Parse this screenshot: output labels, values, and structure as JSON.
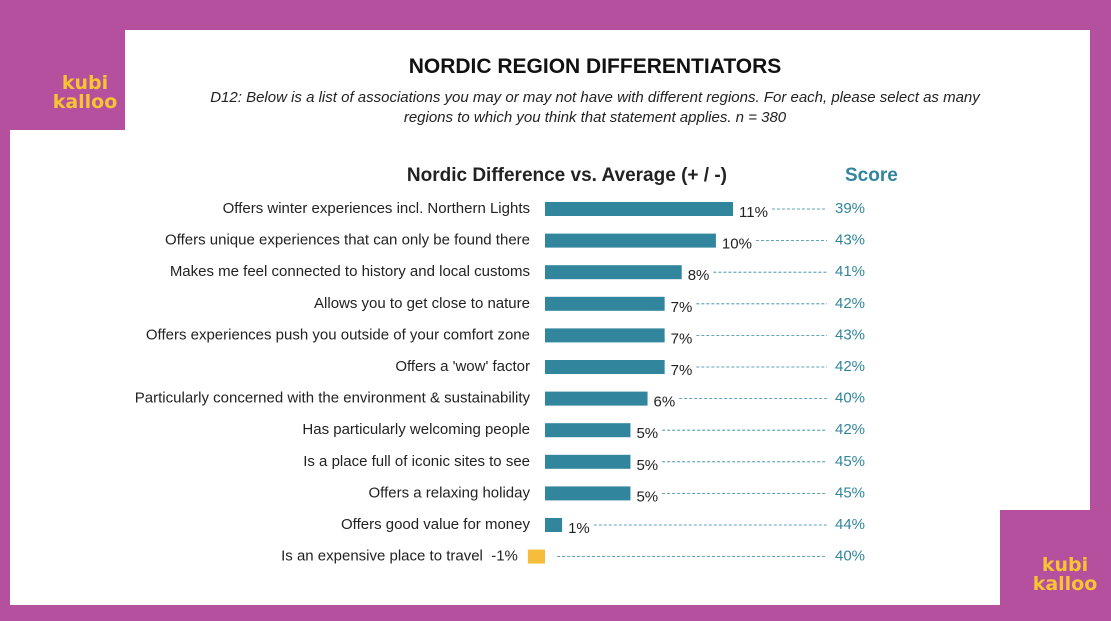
{
  "chart_data": {
    "type": "bar",
    "orientation": "horizontal",
    "title": "NORDIC REGION DIFFERENTIATORS",
    "subtitle": "D12: Below is a list of associations you may or may not have with different regions. For each, please select as many regions to which you think that statement applies. n = 380",
    "brand": [
      "kubi",
      "kalloo"
    ],
    "categories": [
      "Offers winter experiences incl. Northern Lights",
      "Offers unique experiences that can only be found there",
      "Makes me feel connected to history and local customs",
      "Allows you to get close to nature",
      "Offers experiences push you outside of your comfort zone",
      "Offers a 'wow' factor",
      "Particularly concerned with the environment & sustainability",
      "Has particularly welcoming people",
      "Is a place full of iconic sites to see",
      "Offers a relaxing holiday",
      "Offers good value for money",
      "Is an expensive place to travel"
    ],
    "series": [
      {
        "name": "Nordic Difference vs. Average (+ / -)",
        "color": "#31859c",
        "negative_color": "#f5bd3b",
        "values": [
          11,
          10,
          8,
          7,
          7,
          7,
          6,
          5,
          5,
          5,
          1,
          -1
        ],
        "value_labels": [
          "11%",
          "10%",
          "8%",
          "7%",
          "7%",
          "7%",
          "6%",
          "5%",
          "5%",
          "5%",
          "1%",
          "-1%"
        ]
      },
      {
        "name": "Score",
        "color": "#31859c",
        "values": [
          39,
          43,
          41,
          42,
          43,
          42,
          40,
          42,
          45,
          45,
          44,
          40
        ],
        "value_labels": [
          "39%",
          "43%",
          "41%",
          "42%",
          "43%",
          "42%",
          "40%",
          "42%",
          "45%",
          "45%",
          "44%",
          "40%"
        ]
      }
    ]
  }
}
